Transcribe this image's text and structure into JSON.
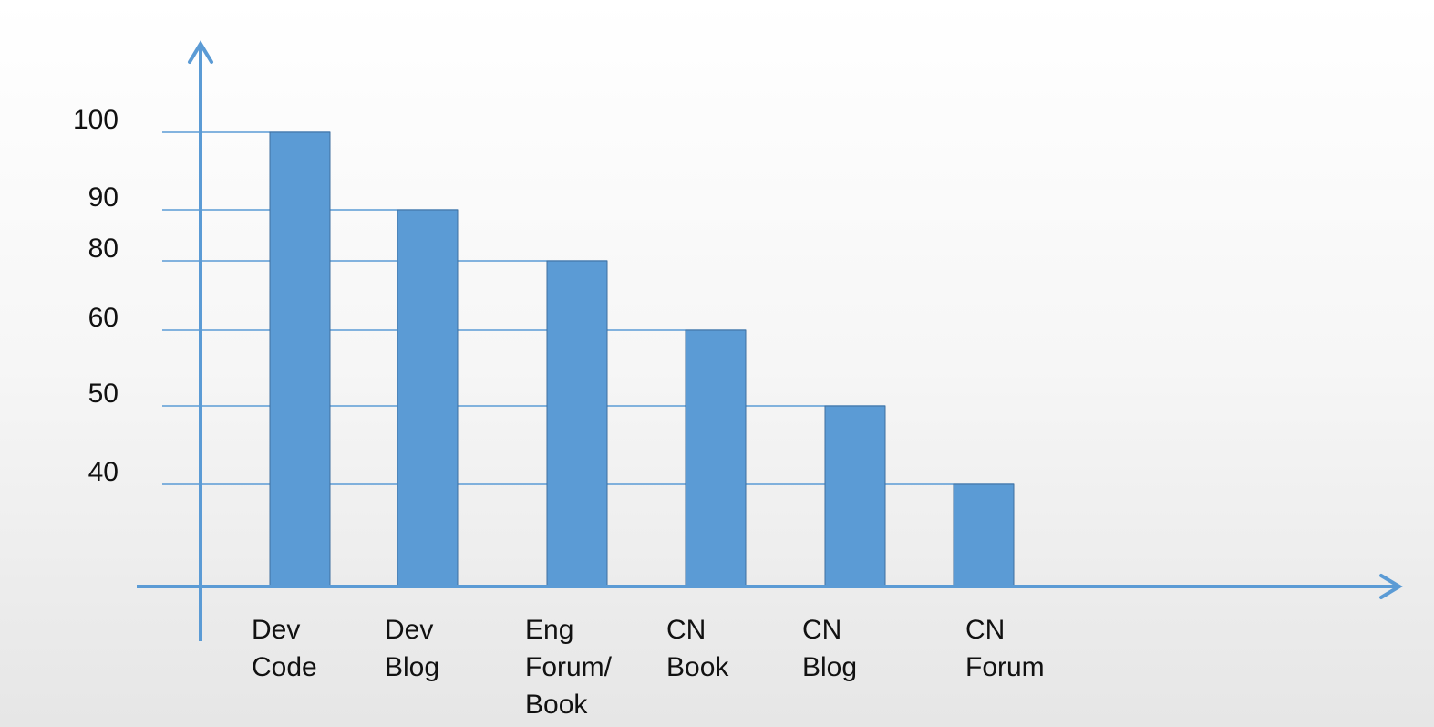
{
  "chart_data": {
    "type": "bar",
    "categories": [
      [
        "Dev",
        "Code"
      ],
      [
        "Dev",
        "Blog"
      ],
      [
        "Eng",
        "Forum/",
        "Book"
      ],
      [
        "CN",
        "Book"
      ],
      [
        "CN",
        "Blog"
      ],
      [
        "CN",
        "Forum"
      ]
    ],
    "values": [
      100,
      90,
      80,
      60,
      50,
      40
    ],
    "y_tick_labels": [
      "100",
      "90",
      "80",
      "60",
      "50",
      "40"
    ],
    "title": "",
    "xlabel": "",
    "ylabel": "",
    "grid": true,
    "legend": "none",
    "colors": {
      "bar": "#5b9bd5",
      "bar_edge": "#3f6f9f",
      "axis": "#5b9bd5",
      "grid": "#5b9bd5"
    }
  }
}
